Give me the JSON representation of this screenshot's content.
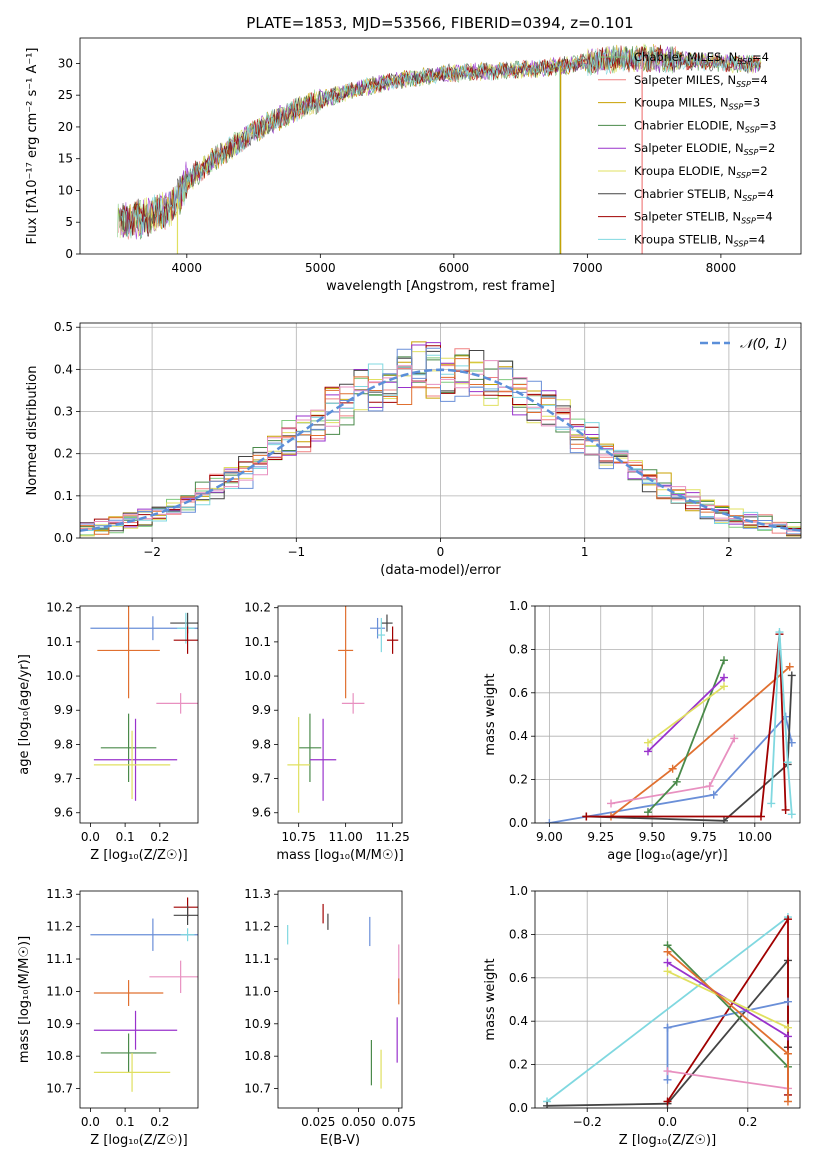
{
  "figure_title": "PLATE=1853, MJD=53566, FIBERID=0394, z=0.101",
  "chart_data": [
    {
      "id": "spectrum",
      "type": "line",
      "xlabel": "wavelength [Angstrom, rest frame]",
      "ylabel": "Flux [fλ10⁻¹⁷ erg cm⁻² s⁻¹ A⁻¹]",
      "xlim": [
        3200,
        8600
      ],
      "ylim": [
        0,
        34
      ],
      "xticks": [
        4000,
        5000,
        6000,
        7000,
        8000
      ],
      "yticks": [
        0,
        5,
        10,
        15,
        20,
        25,
        30
      ],
      "grid": false,
      "legend_position": "right",
      "series": [
        {
          "name": "Chabrier MILES, N<sub>SSP</sub>=4",
          "color": "#7fc97f"
        },
        {
          "name": "Salpeter MILES, N<sub>SSP</sub>=4",
          "color": "#f08080"
        },
        {
          "name": "Kroupa MILES, N<sub>SSP</sub>=3",
          "color": "#c8a000"
        },
        {
          "name": "Chabrier ELODIE, N<sub>SSP</sub>=3",
          "color": "#4a8a4a"
        },
        {
          "name": "Salpeter ELODIE, N<sub>SSP</sub>=2",
          "color": "#9932cc"
        },
        {
          "name": "Kroupa ELODIE, N<sub>SSP</sub>=2",
          "color": "#e0e060"
        },
        {
          "name": "Chabrier STELIB, N<sub>SSP</sub>=4",
          "color": "#444444"
        },
        {
          "name": "Salpeter STELIB, N<sub>SSP</sub>=4",
          "color": "#a00000"
        },
        {
          "name": "Kroupa STELIB, N<sub>SSP</sub>=4",
          "color": "#80d8e0"
        }
      ],
      "continuum": {
        "x": [
          3500,
          3700,
          3900,
          4000,
          4200,
          4400,
          4600,
          4800,
          5000,
          5200,
          5400,
          5600,
          5800,
          6000,
          6200,
          6400,
          6600,
          6800,
          7000,
          7200,
          7400,
          7600,
          7800,
          8000,
          8200,
          8300
        ],
        "y": [
          5.2,
          5.8,
          7.5,
          11.5,
          14.8,
          17.8,
          20.5,
          22.5,
          24.2,
          25.5,
          26.6,
          27.4,
          28.0,
          28.5,
          28.7,
          28.9,
          29.1,
          29.6,
          30.2,
          30.6,
          31.0,
          30.6,
          30.3,
          30.1,
          29.9,
          29.8
        ]
      },
      "drop_lines": [
        {
          "x": 3930,
          "color": "#e0e060"
        },
        {
          "x": 6795,
          "color": "#7fc97f"
        },
        {
          "x": 6800,
          "color": "#c8a000"
        },
        {
          "x": 7410,
          "color": "#f08080"
        }
      ]
    },
    {
      "id": "residuals",
      "type": "step",
      "xlabel": "(data-model)/error",
      "ylabel": "Normed distribution",
      "xlim": [
        -2.5,
        2.5
      ],
      "ylim": [
        0,
        0.51
      ],
      "xticks": [
        -2,
        -1,
        0,
        1,
        2
      ],
      "yticks": [
        0,
        0.1,
        0.2,
        0.3,
        0.4,
        0.5
      ],
      "grid": true,
      "legend_position": "top-right",
      "reference_curve": {
        "name": "𝒩(0, 1)",
        "mean": 0,
        "sigma": 1,
        "color": "#5b8fd9"
      },
      "bin_width": 0.1,
      "series_colors": [
        "#7fc97f",
        "#f08080",
        "#c8a000",
        "#4a8a4a",
        "#9932cc",
        "#e0e060",
        "#444444",
        "#a00000",
        "#80d8e0",
        "#e07030",
        "#6a8fd8",
        "#e890c0"
      ]
    },
    {
      "id": "age_vs_Z",
      "type": "errorbar",
      "xlabel": "Z [log₁₀(Z/Z☉)]",
      "ylabel": "age  [log₁₀(age/yr)]",
      "xlim": [
        -0.03,
        0.31
      ],
      "ylim": [
        9.57,
        10.205
      ],
      "xticks": [
        0.0,
        0.1,
        0.2
      ],
      "yticks": [
        9.6,
        9.7,
        9.8,
        9.9,
        10.0,
        10.1,
        10.2
      ],
      "points": [
        {
          "x": 0.18,
          "xerr": 0.18,
          "y": 10.14,
          "yerr": 0.035,
          "color": "#6a8fd8"
        },
        {
          "x": 0.28,
          "xerr": 0.05,
          "y": 10.155,
          "yerr": 0.03,
          "color": "#444444"
        },
        {
          "x": 0.275,
          "xerr": 0.025,
          "y": 10.14,
          "yerr": 0.045,
          "color": "#80d8e0"
        },
        {
          "x": 0.28,
          "xerr": 0.04,
          "y": 10.105,
          "yerr": 0.04,
          "color": "#a00000"
        },
        {
          "x": 0.11,
          "xerr": 0.09,
          "y": 10.075,
          "yerr": 0.14,
          "color": "#e07030"
        },
        {
          "x": 0.26,
          "xerr": 0.07,
          "y": 9.92,
          "yerr": 0.03,
          "color": "#e890c0"
        },
        {
          "x": 0.11,
          "xerr": 0.08,
          "y": 9.79,
          "yerr": 0.1,
          "color": "#4a8a4a"
        },
        {
          "x": 0.13,
          "xerr": 0.12,
          "y": 9.755,
          "yerr": 0.12,
          "color": "#9932cc"
        },
        {
          "x": 0.12,
          "xerr": 0.11,
          "y": 9.74,
          "yerr": 0.1,
          "color": "#e0e060"
        }
      ]
    },
    {
      "id": "age_vs_mass",
      "type": "errorbar",
      "xlabel": "mass [log₁₀(M/M☉)]",
      "ylabel": "",
      "xlim": [
        10.64,
        11.3
      ],
      "ylim": [
        9.57,
        10.205
      ],
      "xticks": [
        10.75,
        11.0,
        11.25
      ],
      "yticks": [
        9.6,
        9.7,
        9.8,
        9.9,
        10.0,
        10.1,
        10.2
      ],
      "points": [
        {
          "x": 11.17,
          "xerr": 0.04,
          "y": 10.14,
          "yerr": 0.03,
          "color": "#6a8fd8"
        },
        {
          "x": 11.22,
          "xerr": 0.03,
          "y": 10.155,
          "yerr": 0.025,
          "color": "#444444"
        },
        {
          "x": 11.19,
          "xerr": 0.02,
          "y": 10.12,
          "yerr": 0.05,
          "color": "#80d8e0"
        },
        {
          "x": 11.25,
          "xerr": 0.03,
          "y": 10.105,
          "yerr": 0.04,
          "color": "#a00000"
        },
        {
          "x": 11.0,
          "xerr": 0.04,
          "y": 10.075,
          "yerr": 0.14,
          "color": "#e07030"
        },
        {
          "x": 11.04,
          "xerr": 0.06,
          "y": 9.92,
          "yerr": 0.03,
          "color": "#e890c0"
        },
        {
          "x": 10.81,
          "xerr": 0.06,
          "y": 9.79,
          "yerr": 0.1,
          "color": "#4a8a4a"
        },
        {
          "x": 10.88,
          "xerr": 0.07,
          "y": 9.755,
          "yerr": 0.12,
          "color": "#9932cc"
        },
        {
          "x": 10.75,
          "xerr": 0.06,
          "y": 9.74,
          "yerr": 0.14,
          "color": "#e0e060"
        }
      ]
    },
    {
      "id": "mass_weight_vs_age",
      "type": "line",
      "xlabel": "age  [log₁₀(age/yr)]",
      "ylabel": "mass weight",
      "xlim": [
        8.93,
        10.22
      ],
      "ylim": [
        0,
        1.0
      ],
      "xticks": [
        9.0,
        9.25,
        9.5,
        9.75,
        10.0
      ],
      "yticks": [
        0,
        0.2,
        0.4,
        0.6,
        0.8,
        1.0
      ],
      "grid": true,
      "series": [
        {
          "color": "#6a8fd8",
          "x": [
            9.0,
            9.8,
            10.15,
            10.18
          ],
          "y": [
            0.0,
            0.13,
            0.49,
            0.37
          ]
        },
        {
          "color": "#e07030",
          "x": [
            9.3,
            9.6,
            10.17
          ],
          "y": [
            0.03,
            0.25,
            0.72
          ]
        },
        {
          "color": "#e890c0",
          "x": [
            9.3,
            9.78,
            9.9
          ],
          "y": [
            0.09,
            0.17,
            0.39
          ]
        },
        {
          "color": "#4a8a4a",
          "x": [
            9.48,
            9.62,
            9.85
          ],
          "y": [
            0.05,
            0.19,
            0.75
          ]
        },
        {
          "color": "#9932cc",
          "x": [
            9.48,
            9.85
          ],
          "y": [
            0.33,
            0.67
          ]
        },
        {
          "color": "#e0e060",
          "x": [
            9.48,
            9.85
          ],
          "y": [
            0.37,
            0.63
          ]
        },
        {
          "color": "#444444",
          "x": [
            9.18,
            9.85,
            10.16,
            10.18
          ],
          "y": [
            0.03,
            0.01,
            0.27,
            0.68
          ]
        },
        {
          "color": "#a00000",
          "x": [
            9.18,
            10.03,
            10.12,
            10.15
          ],
          "y": [
            0.03,
            0.03,
            0.87,
            0.06
          ]
        },
        {
          "color": "#80d8e0",
          "x": [
            10.08,
            10.12,
            10.16,
            10.18
          ],
          "y": [
            0.09,
            0.88,
            0.28,
            0.04
          ]
        }
      ]
    },
    {
      "id": "mass_vs_Z",
      "type": "errorbar",
      "xlabel": "Z [log₁₀(Z/Z☉)]",
      "ylabel": "mass [log₁₀(M/M☉)]",
      "xlim": [
        -0.03,
        0.31
      ],
      "ylim": [
        10.64,
        11.31
      ],
      "xticks": [
        0.0,
        0.1,
        0.2
      ],
      "yticks": [
        10.7,
        10.8,
        10.9,
        11.0,
        11.1,
        11.2,
        11.3
      ],
      "points": [
        {
          "x": 0.28,
          "xerr": 0.04,
          "y": 11.26,
          "yerr": 0.03,
          "color": "#a00000"
        },
        {
          "x": 0.28,
          "xerr": 0.04,
          "y": 11.235,
          "yerr": 0.03,
          "color": "#444444"
        },
        {
          "x": 0.18,
          "xerr": 0.18,
          "y": 11.175,
          "yerr": 0.05,
          "color": "#6a8fd8"
        },
        {
          "x": 0.28,
          "xerr": 0.02,
          "y": 11.175,
          "yerr": 0.02,
          "color": "#80d8e0"
        },
        {
          "x": 0.26,
          "xerr": 0.09,
          "y": 11.045,
          "yerr": 0.05,
          "color": "#e890c0"
        },
        {
          "x": 0.11,
          "xerr": 0.1,
          "y": 10.995,
          "yerr": 0.04,
          "color": "#e07030"
        },
        {
          "x": 0.13,
          "xerr": 0.12,
          "y": 10.88,
          "yerr": 0.06,
          "color": "#9932cc"
        },
        {
          "x": 0.11,
          "xerr": 0.08,
          "y": 10.81,
          "yerr": 0.06,
          "color": "#4a8a4a"
        },
        {
          "x": 0.12,
          "xerr": 0.11,
          "y": 10.75,
          "yerr": 0.06,
          "color": "#e0e060"
        }
      ]
    },
    {
      "id": "mass_vs_ebv",
      "type": "errorbar",
      "xlabel": "E(B-V)",
      "ylabel": "",
      "xlim": [
        0.0,
        0.077
      ],
      "ylim": [
        10.64,
        11.31
      ],
      "xticks": [
        0.025,
        0.05,
        0.075
      ],
      "xticklabels": [
        "0.025",
        "0.050",
        "0.075"
      ],
      "yticks": [
        10.7,
        10.8,
        10.9,
        11.0,
        11.1,
        11.2,
        11.3
      ],
      "points": [
        {
          "x": 0.028,
          "y": 11.24,
          "yerr": 0.03,
          "color": "#a00000"
        },
        {
          "x": 0.031,
          "y": 11.215,
          "yerr": 0.025,
          "color": "#444444"
        },
        {
          "x": 0.006,
          "y": 11.175,
          "yerr": 0.03,
          "color": "#80d8e0"
        },
        {
          "x": 0.057,
          "y": 11.185,
          "yerr": 0.045,
          "color": "#6a8fd8"
        },
        {
          "x": 0.075,
          "y": 11.07,
          "yerr": 0.075,
          "color": "#e890c0"
        },
        {
          "x": 0.075,
          "y": 11.0,
          "yerr": 0.04,
          "color": "#e07030"
        },
        {
          "x": 0.074,
          "y": 10.85,
          "yerr": 0.07,
          "color": "#9932cc"
        },
        {
          "x": 0.058,
          "y": 10.78,
          "yerr": 0.07,
          "color": "#4a8a4a"
        },
        {
          "x": 0.064,
          "y": 10.76,
          "yerr": 0.06,
          "color": "#e0e060"
        }
      ]
    },
    {
      "id": "mass_weight_vs_Z",
      "type": "line",
      "xlabel": "Z [log₁₀(Z/Z☉)]",
      "ylabel": "mass weight",
      "xlim": [
        -0.33,
        0.33
      ],
      "ylim": [
        0,
        1.0
      ],
      "xticks": [
        -0.2,
        0.0,
        0.2
      ],
      "yticks": [
        0,
        0.2,
        0.4,
        0.6,
        0.8,
        1.0
      ],
      "grid": true,
      "series": [
        {
          "color": "#80d8e0",
          "x": [
            -0.3,
            0.3
          ],
          "y": [
            0.03,
            0.88
          ]
        },
        {
          "color": "#444444",
          "x": [
            -0.3,
            0.0,
            0.3,
            0.3
          ],
          "y": [
            0.01,
            0.02,
            0.68,
            0.28
          ]
        },
        {
          "color": "#a00000",
          "x": [
            0.0,
            0.3,
            0.3
          ],
          "y": [
            0.03,
            0.87,
            0.06
          ]
        },
        {
          "color": "#6a8fd8",
          "x": [
            0.0,
            0.0,
            0.0,
            0.3
          ],
          "y": [
            0.13,
            0.37,
            0.37,
            0.49
          ]
        },
        {
          "color": "#e890c0",
          "x": [
            0.0,
            0.3
          ],
          "y": [
            0.17,
            0.09
          ]
        },
        {
          "color": "#4a8a4a",
          "x": [
            0.0,
            0.3
          ],
          "y": [
            0.75,
            0.19
          ]
        },
        {
          "color": "#9932cc",
          "x": [
            0.0,
            0.3
          ],
          "y": [
            0.67,
            0.33
          ]
        },
        {
          "color": "#e0e060",
          "x": [
            0.0,
            0.3
          ],
          "y": [
            0.63,
            0.37
          ]
        },
        {
          "color": "#e07030",
          "x": [
            0.0,
            0.3,
            0.3
          ],
          "y": [
            0.72,
            0.25,
            0.03
          ]
        }
      ]
    }
  ]
}
